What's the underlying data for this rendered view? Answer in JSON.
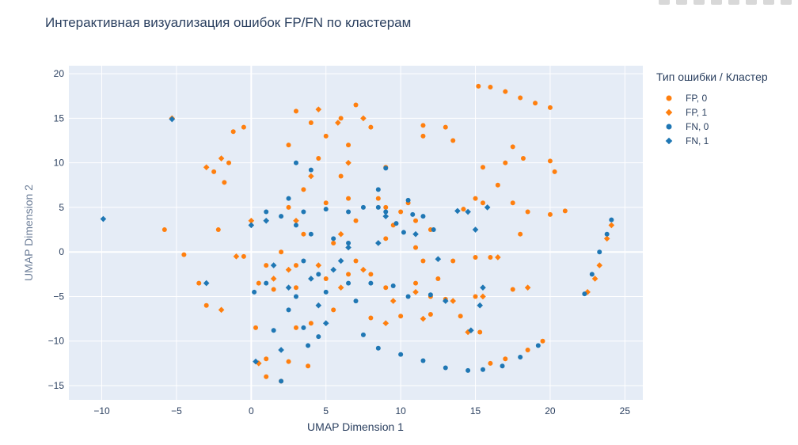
{
  "chart_data": {
    "type": "scatter",
    "title": "Интерактивная визуализация ошибок FP/FN по кластерам",
    "xlabel": "UMAP Dimension 1",
    "ylabel": "UMAP Dimension 2",
    "xlim": [
      -12.2,
      26.2
    ],
    "ylim": [
      -16.6,
      20.9
    ],
    "xticks": [
      -10,
      -5,
      0,
      5,
      10,
      15,
      20,
      25
    ],
    "yticks": [
      -15,
      -10,
      -5,
      0,
      5,
      10,
      15,
      20
    ],
    "grid": true,
    "legend_title": "Тип ошибки / Кластер",
    "legend_position": "right",
    "series": [
      {
        "name": "FP, 0",
        "color": "#ff7f0e",
        "marker": "circle",
        "points": [
          [
            15.2,
            18.6
          ],
          [
            16.0,
            18.5
          ],
          [
            17.0,
            18.0
          ],
          [
            18.0,
            17.3
          ],
          [
            19.0,
            16.7
          ],
          [
            20.0,
            16.2
          ],
          [
            13.0,
            14.0
          ],
          [
            11.5,
            14.2
          ],
          [
            13.5,
            12.5
          ],
          [
            17.5,
            11.8
          ],
          [
            18.2,
            10.5
          ],
          [
            17.0,
            10.0
          ],
          [
            20.0,
            10.2
          ],
          [
            20.3,
            9.0
          ],
          [
            15.5,
            9.5
          ],
          [
            16.5,
            7.5
          ],
          [
            17.5,
            5.5
          ],
          [
            18.5,
            4.5
          ],
          [
            20.0,
            4.2
          ],
          [
            21.0,
            4.6
          ],
          [
            15.0,
            6.0
          ],
          [
            15.5,
            5.5
          ],
          [
            14.2,
            4.8
          ],
          [
            15.0,
            -0.6
          ],
          [
            16.0,
            -0.6
          ],
          [
            18.0,
            2.0
          ],
          [
            17.5,
            -4.2
          ],
          [
            15.0,
            -5.0
          ],
          [
            15.3,
            -9.0
          ],
          [
            16.0,
            -12.5
          ],
          [
            17.0,
            -12.0
          ],
          [
            18.5,
            -11.0
          ],
          [
            19.5,
            -10.0
          ],
          [
            9.0,
            9.5
          ],
          [
            11.5,
            13.0
          ],
          [
            10.0,
            4.5
          ],
          [
            9.5,
            3.0
          ],
          [
            10.5,
            5.5
          ],
          [
            11.0,
            3.5
          ],
          [
            9.0,
            5.0
          ],
          [
            12.0,
            2.5
          ],
          [
            8.5,
            6.0
          ],
          [
            6.0,
            15.0
          ],
          [
            7.0,
            16.5
          ],
          [
            8.0,
            14.0
          ],
          [
            6.5,
            12.0
          ],
          [
            5.0,
            13.0
          ],
          [
            4.0,
            14.5
          ],
          [
            3.0,
            15.8
          ],
          [
            2.5,
            12.0
          ],
          [
            4.5,
            10.5
          ],
          [
            6.0,
            8.5
          ],
          [
            6.5,
            6.0
          ],
          [
            5.0,
            5.5
          ],
          [
            3.5,
            7.0
          ],
          [
            2.5,
            5.0
          ],
          [
            3.5,
            2.0
          ],
          [
            5.5,
            1.0
          ],
          [
            7.0,
            -1.0
          ],
          [
            6.5,
            -2.5
          ],
          [
            5.0,
            -3.0
          ],
          [
            3.0,
            -1.5
          ],
          [
            2.0,
            0.0
          ],
          [
            1.0,
            -1.5
          ],
          [
            0.5,
            -3.5
          ],
          [
            1.5,
            -4.2
          ],
          [
            3.0,
            -4.0
          ],
          [
            8.0,
            -2.5
          ],
          [
            9.0,
            -4.0
          ],
          [
            11.0,
            -3.5
          ],
          [
            12.5,
            -3.0
          ],
          [
            13.5,
            -1.0
          ],
          [
            12.0,
            -5.0
          ],
          [
            13.0,
            -5.3
          ],
          [
            8.0,
            -7.4
          ],
          [
            10.0,
            -7.2
          ],
          [
            12.0,
            -7.0
          ],
          [
            14.0,
            -7.2
          ],
          [
            1.0,
            -12.0
          ],
          [
            2.5,
            -12.3
          ],
          [
            3.8,
            -12.8
          ],
          [
            1.0,
            -14.0
          ],
          [
            2.0,
            -14.5
          ],
          [
            0.3,
            -8.5
          ],
          [
            -2.5,
            9.0
          ],
          [
            -1.5,
            10.0
          ],
          [
            -1.8,
            7.8
          ],
          [
            -1.2,
            13.5
          ],
          [
            -0.5,
            14.0
          ],
          [
            -2.2,
            2.5
          ],
          [
            -3.0,
            -6.0
          ],
          [
            -3.5,
            -3.5
          ],
          [
            -4.5,
            -0.3
          ],
          [
            -5.8,
            2.5
          ],
          [
            -0.5,
            -0.5
          ],
          [
            7.0,
            3.5
          ],
          [
            11.5,
            -1.0
          ],
          [
            11.0,
            0.5
          ],
          [
            9.0,
            1.5
          ],
          [
            5.5,
            -6.5
          ],
          [
            4.0,
            -8.0
          ],
          [
            3.0,
            -8.5
          ]
        ]
      },
      {
        "name": "FP, 1",
        "color": "#ff7f0e",
        "marker": "diamond",
        "points": [
          [
            -5.3,
            15.0
          ],
          [
            -3.0,
            9.5
          ],
          [
            -2.0,
            10.5
          ],
          [
            4.5,
            16.0
          ],
          [
            5.8,
            14.5
          ],
          [
            7.5,
            15.0
          ],
          [
            6.5,
            10.0
          ],
          [
            4.0,
            8.5
          ],
          [
            3.0,
            3.5
          ],
          [
            6.0,
            2.0
          ],
          [
            7.5,
            -2.0
          ],
          [
            4.5,
            -1.5
          ],
          [
            2.5,
            -2.0
          ],
          [
            1.5,
            -3.0
          ],
          [
            6.0,
            -4.0
          ],
          [
            9.5,
            -5.5
          ],
          [
            11.0,
            -4.5
          ],
          [
            13.5,
            -5.5
          ],
          [
            15.5,
            -5.0
          ],
          [
            14.5,
            -9.0
          ],
          [
            16.5,
            -0.6
          ],
          [
            18.5,
            -4.0
          ],
          [
            0.0,
            3.5
          ],
          [
            -1.0,
            -0.5
          ],
          [
            -2.0,
            -6.5
          ],
          [
            0.5,
            -12.5
          ],
          [
            9.0,
            -8.0
          ],
          [
            11.5,
            -7.5
          ],
          [
            22.5,
            -4.5
          ],
          [
            23.3,
            -1.5
          ],
          [
            23.8,
            1.5
          ],
          [
            24.1,
            3.0
          ],
          [
            23.0,
            -3.0
          ]
        ]
      },
      {
        "name": "FN, 0",
        "color": "#1f77b4",
        "marker": "circle",
        "points": [
          [
            7.5,
            -9.3
          ],
          [
            8.5,
            -10.8
          ],
          [
            10.0,
            -11.5
          ],
          [
            11.5,
            -12.2
          ],
          [
            13.0,
            -13.0
          ],
          [
            14.5,
            -13.3
          ],
          [
            15.5,
            -13.2
          ],
          [
            16.8,
            -12.8
          ],
          [
            18.0,
            -11.8
          ],
          [
            19.2,
            -10.5
          ],
          [
            24.1,
            3.6
          ],
          [
            23.8,
            2.0
          ],
          [
            23.3,
            0.0
          ],
          [
            22.8,
            -2.5
          ],
          [
            22.3,
            -4.7
          ],
          [
            9.0,
            4.5
          ],
          [
            9.7,
            3.2
          ],
          [
            10.5,
            5.8
          ],
          [
            10.2,
            2.2
          ],
          [
            11.5,
            4.0
          ],
          [
            12.2,
            2.5
          ],
          [
            8.5,
            5.0
          ],
          [
            10.8,
            4.2
          ],
          [
            3.5,
            4.5
          ],
          [
            5.0,
            4.8
          ],
          [
            6.5,
            4.5
          ],
          [
            5.5,
            1.5
          ],
          [
            6.5,
            1.0
          ],
          [
            4.0,
            2.0
          ],
          [
            3.0,
            3.0
          ],
          [
            1.0,
            4.5
          ],
          [
            2.0,
            4.0
          ],
          [
            3.5,
            -1.0
          ],
          [
            4.5,
            -2.5
          ],
          [
            6.5,
            -3.5
          ],
          [
            5.0,
            -4.5
          ],
          [
            3.0,
            -5.0
          ],
          [
            1.0,
            -3.5
          ],
          [
            0.2,
            -4.5
          ],
          [
            2.5,
            -6.5
          ],
          [
            3.5,
            -8.5
          ],
          [
            1.5,
            -8.8
          ],
          [
            4.5,
            -9.5
          ],
          [
            3.8,
            -10.5
          ],
          [
            2.0,
            -14.5
          ],
          [
            8.0,
            -3.5
          ],
          [
            7.0,
            -5.5
          ],
          [
            9.5,
            -3.8
          ],
          [
            10.5,
            -5.0
          ],
          [
            12.0,
            -4.8
          ],
          [
            9.0,
            9.4
          ],
          [
            8.5,
            7.0
          ],
          [
            7.5,
            5.0
          ],
          [
            4.0,
            9.2
          ],
          [
            2.5,
            6.0
          ],
          [
            3.0,
            10.0
          ]
        ]
      },
      {
        "name": "FN, 1",
        "color": "#1f77b4",
        "marker": "diamond",
        "points": [
          [
            -9.9,
            3.7
          ],
          [
            -5.3,
            14.9
          ],
          [
            -3.0,
            -3.5
          ],
          [
            0.0,
            3.0
          ],
          [
            1.0,
            3.5
          ],
          [
            1.5,
            -1.5
          ],
          [
            2.5,
            -4.0
          ],
          [
            4.0,
            -3.0
          ],
          [
            5.5,
            -2.0
          ],
          [
            6.0,
            -1.0
          ],
          [
            6.5,
            0.5
          ],
          [
            4.5,
            -6.0
          ],
          [
            5.0,
            -8.0
          ],
          [
            2.0,
            -11.0
          ],
          [
            0.3,
            -12.3
          ],
          [
            8.5,
            1.0
          ],
          [
            9.0,
            4.0
          ],
          [
            11.0,
            2.0
          ],
          [
            12.5,
            -0.8
          ],
          [
            13.8,
            4.6
          ],
          [
            14.5,
            4.5
          ],
          [
            14.7,
            -8.8
          ],
          [
            15.3,
            -6.0
          ],
          [
            15.5,
            -4.0
          ],
          [
            15.0,
            2.5
          ],
          [
            15.8,
            5.0
          ],
          [
            13.0,
            -5.5
          ]
        ]
      }
    ]
  }
}
